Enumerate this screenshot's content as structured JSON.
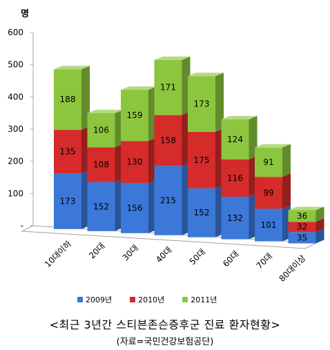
{
  "chart_data": {
    "type": "bar",
    "stacked": true,
    "three_d": true,
    "title": "<최근 3년간 스티븐존슨증후군 진료 환자현황>",
    "subtitle": "(자료=국민건강보험공단)",
    "ylabel": "명",
    "ylim": [
      0,
      600
    ],
    "yticks": [
      "-",
      "100",
      "200",
      "300",
      "400",
      "500",
      "600"
    ],
    "categories": [
      "10대이하",
      "20대",
      "30대",
      "40대",
      "50대",
      "60대",
      "70대",
      "80대이상"
    ],
    "series": [
      {
        "name": "2009년",
        "color": "#3B78D8",
        "values": [
          173,
          152,
          156,
          215,
          152,
          132,
          101,
          35
        ]
      },
      {
        "name": "2010년",
        "color": "#D52B2B",
        "values": [
          135,
          108,
          130,
          158,
          175,
          116,
          99,
          32
        ]
      },
      {
        "name": "2011년",
        "color": "#8CC63E",
        "values": [
          188,
          106,
          159,
          171,
          173,
          124,
          91,
          36
        ]
      }
    ],
    "legend_position": "bottom",
    "grid": false
  }
}
